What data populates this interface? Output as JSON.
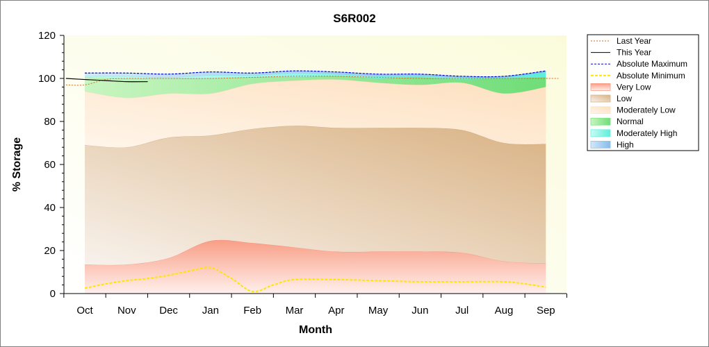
{
  "chart_data": {
    "type": "area",
    "title": "S6R002",
    "xlabel": "Month",
    "ylabel": "% Storage",
    "ylim": [
      0,
      120
    ],
    "yticks": [
      0,
      20,
      40,
      60,
      80,
      100,
      120
    ],
    "categories": [
      "Oct",
      "Nov",
      "Dec",
      "Jan",
      "Feb",
      "Mar",
      "Apr",
      "May",
      "Jun",
      "Jul",
      "Aug",
      "Sep"
    ],
    "legend_position": "right",
    "bands": {
      "very_low_top": [
        13.5,
        13.5,
        16.5,
        24.5,
        23.5,
        21.5,
        19.5,
        19.5,
        19.5,
        19,
        15,
        14
      ],
      "low_top": [
        69,
        68,
        72.5,
        73.5,
        76.5,
        78,
        77,
        77,
        77,
        76,
        70,
        69.5
      ],
      "moderately_low_top": [
        94,
        91,
        93,
        93,
        97.5,
        99,
        99.5,
        98,
        97,
        98,
        93,
        96
      ],
      "normal_top": [
        100.5,
        100,
        100,
        100,
        100.5,
        100.5,
        101,
        100,
        100.5,
        99.5,
        100,
        100.5
      ],
      "moderately_high_top": [
        101,
        101,
        100.5,
        101.5,
        101.5,
        102.5,
        102,
        101,
        101,
        100.5,
        100.5,
        103
      ],
      "high_top": [
        102.5,
        102.5,
        102,
        103,
        102.5,
        103.5,
        103,
        102,
        102,
        101,
        101,
        103.5
      ]
    },
    "series": [
      {
        "name": "Last Year",
        "color": "#d2691e",
        "x": [
          -0.45,
          0,
          0.5,
          1,
          1.5,
          2,
          3,
          4,
          5,
          6,
          7,
          8,
          9,
          10,
          11,
          11.3
        ],
        "values": [
          97,
          97,
          99.5,
          100,
          100,
          100,
          100,
          100.5,
          101,
          101,
          100.5,
          100,
          100,
          100,
          100,
          100
        ]
      },
      {
        "name": "This Year",
        "color": "#000000",
        "x": [
          -0.45,
          0,
          0.5,
          1,
          1.5
        ],
        "values": [
          100,
          99.5,
          99,
          98.5,
          98.5
        ]
      },
      {
        "name": "Absolute Maximum",
        "color": "#0000cd",
        "x": [
          0,
          1,
          2,
          3,
          4,
          5,
          6,
          7,
          8,
          9,
          10,
          11
        ],
        "values": [
          102.5,
          102.5,
          102,
          103,
          102.5,
          103.5,
          103,
          102,
          102,
          101,
          101,
          103.5
        ]
      },
      {
        "name": "Absolute Minimum",
        "color": "#ffe600",
        "x": [
          0,
          0.5,
          1,
          1.5,
          2,
          2.5,
          3,
          3.5,
          4,
          4.5,
          5,
          6,
          7,
          8,
          9,
          10,
          10.5,
          11
        ],
        "values": [
          2.5,
          4.5,
          6,
          7,
          8.5,
          10.5,
          12,
          7,
          1,
          4,
          6.5,
          6.5,
          6,
          5.5,
          5.5,
          5.5,
          4.5,
          3
        ]
      }
    ],
    "legend": [
      {
        "label": "Last Year",
        "kind": "line",
        "color": "#d2691e",
        "dash": "2,2"
      },
      {
        "label": "This Year",
        "kind": "line",
        "color": "#000000",
        "dash": ""
      },
      {
        "label": "Absolute Maximum",
        "kind": "line",
        "color": "#0000cd",
        "dash": "3,2"
      },
      {
        "label": "Absolute Minimum",
        "kind": "line",
        "color": "#ffe600",
        "dash": "4,2"
      },
      {
        "label": "Very Low",
        "kind": "band",
        "color": "#f89e86"
      },
      {
        "label": "Low",
        "kind": "band",
        "color": "#d7b48c"
      },
      {
        "label": "Moderately Low",
        "kind": "band",
        "color": "#fde4c8"
      },
      {
        "label": "Normal",
        "kind": "band",
        "color": "#7fe37f"
      },
      {
        "label": "Moderately High",
        "kind": "band",
        "color": "#6cf0e0"
      },
      {
        "label": "High",
        "kind": "band",
        "color": "#8ec2ee"
      }
    ]
  }
}
